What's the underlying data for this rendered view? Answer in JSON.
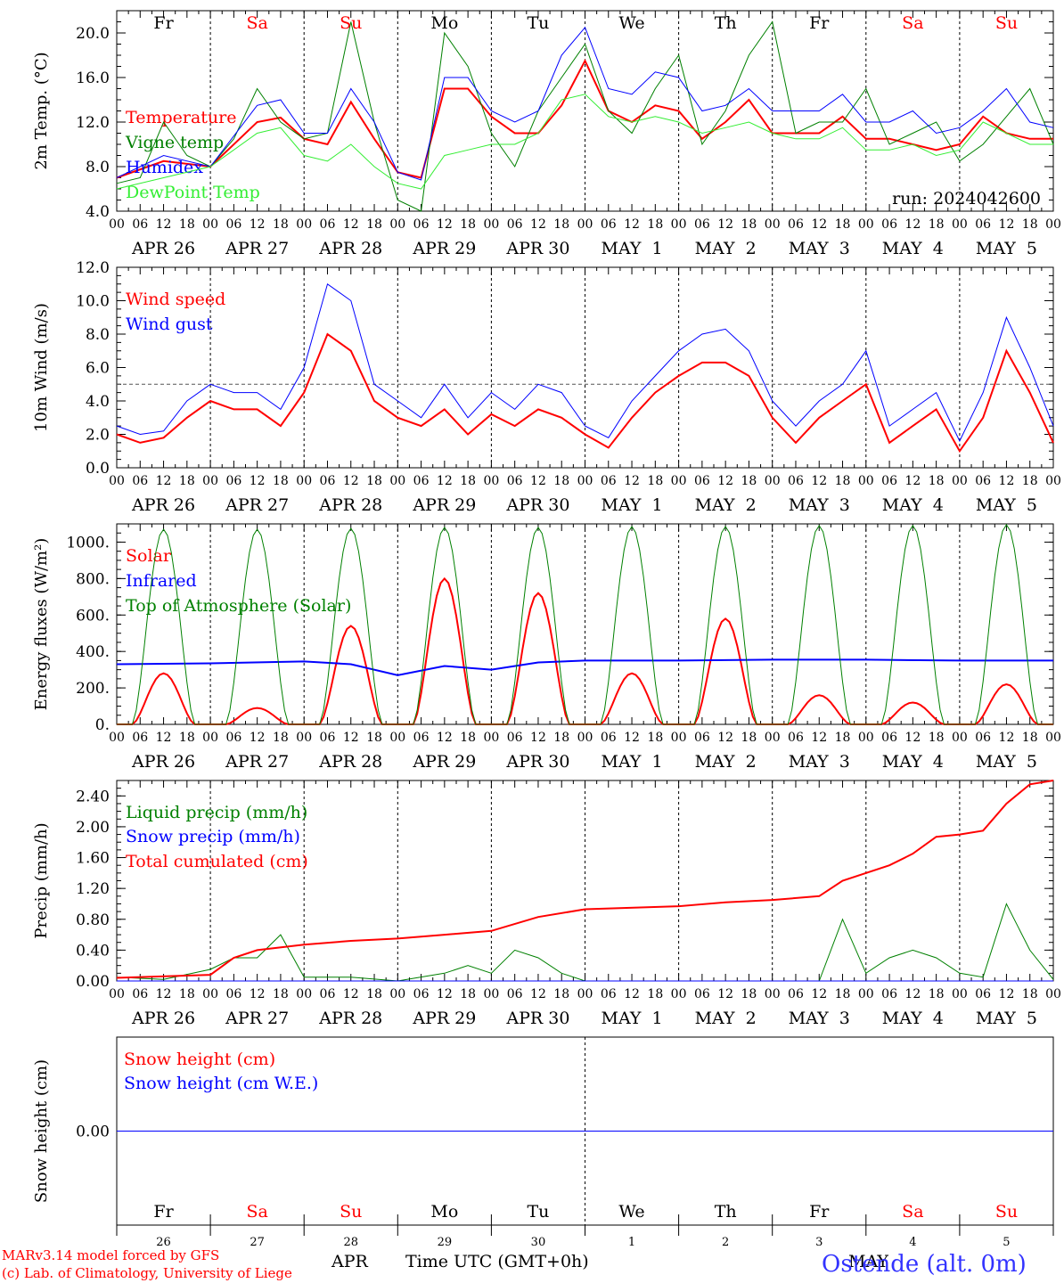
{
  "station": "Ostende (alt. 0m)",
  "credits": [
    "MARv3.14 model forced by GFS",
    "(c) Lab. of Climatology, University of Liege"
  ],
  "x_axis_title": "Time UTC (GMT+0h)",
  "months": [
    "APR",
    "MAY"
  ],
  "run_label": "run: 2024042600",
  "hour_ticks": [
    "00",
    "06",
    "12",
    "18"
  ],
  "date_labels": [
    "APR 26",
    "APR 27",
    "APR 28",
    "APR 29",
    "APR 30",
    "MAY  1",
    "MAY  2",
    "MAY  3",
    "MAY  4",
    "MAY  5"
  ],
  "weekdays": [
    {
      "name": "Fr",
      "color": "#000000"
    },
    {
      "name": "Sa",
      "color": "#ff0000"
    },
    {
      "name": "Su",
      "color": "#ff0000"
    },
    {
      "name": "Mo",
      "color": "#000000"
    },
    {
      "name": "Tu",
      "color": "#000000"
    },
    {
      "name": "We",
      "color": "#000000"
    },
    {
      "name": "Th",
      "color": "#000000"
    },
    {
      "name": "Fr",
      "color": "#000000"
    },
    {
      "name": "Sa",
      "color": "#ff0000"
    },
    {
      "name": "Su",
      "color": "#ff0000"
    }
  ],
  "day_numbers": [
    "26",
    "27",
    "28",
    "29",
    "30",
    "1",
    "2",
    "3",
    "4",
    "5"
  ],
  "colors": {
    "red": "#ff0000",
    "green": "#008000",
    "blue": "#0000ff",
    "lightgreen": "#33ee33",
    "purple": "#800080"
  },
  "chart_data": [
    {
      "type": "line",
      "ylabel": "2m Temp. (°C)",
      "ylim": [
        4,
        22
      ],
      "yticks": [
        "4.0",
        "8.0",
        "12.0",
        "16.0",
        "20.0"
      ],
      "ytick_values": [
        4,
        8,
        12,
        16,
        20
      ],
      "x_unit": "hours since APR 26 00 UTC",
      "x_range": [
        0,
        240
      ],
      "series": [
        {
          "name": "Temperature",
          "color": "#ff0000",
          "width": 2,
          "x": [
            0,
            12,
            24,
            36,
            42,
            48,
            54,
            60,
            66,
            72,
            78,
            84,
            90,
            96,
            102,
            108,
            114,
            120,
            126,
            132,
            138,
            144,
            150,
            156,
            162,
            168,
            174,
            180,
            186,
            192,
            198,
            204,
            210,
            216,
            222,
            228,
            234,
            240
          ],
          "y": [
            7,
            8.5,
            8,
            12,
            12.4,
            10.5,
            10,
            13.8,
            10.5,
            7.5,
            7,
            15,
            15,
            12.5,
            11,
            11,
            13.5,
            17.5,
            13,
            12,
            13.5,
            13,
            10.5,
            12,
            14,
            11,
            11,
            11,
            12.5,
            10.5,
            10.5,
            10,
            9.5,
            10,
            12.5,
            11,
            10.5,
            10.5
          ]
        },
        {
          "name": "Vigne temp",
          "color": "#008000",
          "width": 1,
          "x": [
            0,
            6,
            12,
            18,
            24,
            30,
            36,
            42,
            48,
            54,
            60,
            66,
            72,
            78,
            84,
            90,
            96,
            102,
            108,
            114,
            120,
            126,
            132,
            138,
            144,
            150,
            156,
            162,
            168,
            174,
            180,
            186,
            192,
            198,
            204,
            210,
            216,
            222,
            228,
            234,
            240
          ],
          "y": [
            6.5,
            7,
            12,
            9,
            8,
            10.5,
            15,
            12,
            10.5,
            11,
            21,
            12,
            5,
            4,
            20,
            17,
            11,
            8,
            13,
            16,
            19,
            13,
            11,
            15,
            18,
            10,
            13,
            18,
            21,
            11,
            12,
            12,
            15,
            10,
            11,
            12,
            8.5,
            10,
            12.5,
            15,
            10
          ]
        },
        {
          "name": "Humidex",
          "color": "#0000ff",
          "width": 1,
          "x": [
            0,
            12,
            24,
            36,
            42,
            48,
            54,
            60,
            66,
            72,
            78,
            84,
            90,
            96,
            102,
            108,
            114,
            120,
            126,
            132,
            138,
            144,
            150,
            156,
            162,
            168,
            174,
            180,
            186,
            192,
            198,
            204,
            210,
            216,
            222,
            228,
            234,
            240
          ],
          "y": [
            7,
            9,
            8,
            13.5,
            14,
            11,
            11,
            15,
            12,
            7.5,
            6.8,
            16,
            16,
            13,
            12,
            13,
            18,
            20.5,
            15,
            14.5,
            16.5,
            16,
            13,
            13.5,
            15,
            13,
            13,
            13,
            14.5,
            12,
            12,
            13,
            11,
            11.5,
            13,
            15,
            12,
            11.5
          ]
        },
        {
          "name": "DewPoint Temp",
          "color": "#33ee33",
          "width": 1,
          "x": [
            0,
            12,
            24,
            36,
            42,
            48,
            54,
            60,
            66,
            72,
            78,
            84,
            90,
            96,
            102,
            108,
            114,
            120,
            126,
            132,
            138,
            144,
            150,
            156,
            162,
            168,
            174,
            180,
            186,
            192,
            198,
            204,
            210,
            216,
            222,
            228,
            234,
            240
          ],
          "y": [
            6,
            7,
            8,
            11,
            11.5,
            9,
            8.5,
            10,
            8,
            6.5,
            6,
            9,
            9.5,
            10,
            10,
            11,
            14,
            14.5,
            12.5,
            12,
            12.5,
            12,
            11,
            11.5,
            12,
            11,
            10.5,
            10.5,
            11.5,
            9.5,
            9.5,
            10,
            9,
            9.5,
            12,
            11,
            10,
            10
          ]
        }
      ]
    },
    {
      "type": "line",
      "ylabel": "10m Wind (m/s)",
      "ylim": [
        0,
        12
      ],
      "yticks": [
        "0.0",
        "2.0",
        "4.0",
        "6.0",
        "8.0",
        "10.0",
        "12.0"
      ],
      "ytick_values": [
        0,
        2,
        4,
        6,
        8,
        10,
        12
      ],
      "reference_line": 5,
      "x_unit": "hours since APR 26 00 UTC",
      "x_range": [
        0,
        240
      ],
      "series": [
        {
          "name": "Wind speed",
          "color": "#ff0000",
          "width": 2,
          "x": [
            0,
            6,
            12,
            18,
            24,
            30,
            36,
            42,
            48,
            54,
            60,
            66,
            72,
            78,
            84,
            90,
            96,
            102,
            108,
            114,
            120,
            126,
            132,
            138,
            144,
            150,
            156,
            162,
            168,
            174,
            180,
            186,
            192,
            198,
            204,
            210,
            216,
            222,
            228,
            234,
            240
          ],
          "y": [
            2,
            1.5,
            1.8,
            3,
            4,
            3.5,
            3.5,
            2.5,
            4.5,
            8,
            7,
            4,
            3,
            2.5,
            3.5,
            2,
            3.2,
            2.5,
            3.5,
            3,
            2,
            1.2,
            3,
            4.5,
            5.5,
            6.3,
            6.3,
            5.5,
            3,
            1.5,
            3,
            4,
            5,
            1.5,
            2.5,
            3.5,
            1,
            3,
            7,
            4.5,
            1.5
          ]
        },
        {
          "name": "Wind gust",
          "color": "#0000ff",
          "width": 1,
          "x": [
            0,
            6,
            12,
            18,
            24,
            30,
            36,
            42,
            48,
            54,
            60,
            66,
            72,
            78,
            84,
            90,
            96,
            102,
            108,
            114,
            120,
            126,
            132,
            138,
            144,
            150,
            156,
            162,
            168,
            174,
            180,
            186,
            192,
            198,
            204,
            210,
            216,
            222,
            228,
            234,
            240
          ],
          "y": [
            2.5,
            2,
            2.2,
            4,
            5,
            4.5,
            4.5,
            3.5,
            6,
            11,
            10,
            5,
            4,
            3,
            5,
            3,
            4.5,
            3.5,
            5,
            4.5,
            2.5,
            1.8,
            4,
            5.5,
            7,
            8,
            8.3,
            7,
            4,
            2.5,
            4,
            5,
            7,
            2.5,
            3.5,
            4.5,
            1.6,
            4.5,
            9,
            6,
            2.5
          ]
        }
      ]
    },
    {
      "type": "line",
      "ylabel": "Energy fluxes (W/m²)",
      "ylim": [
        0,
        1100
      ],
      "yticks": [
        "0.",
        "200.",
        "400.",
        "600.",
        "800.",
        "1000."
      ],
      "ytick_values": [
        0,
        200,
        400,
        600,
        800,
        1000
      ],
      "x_unit": "hours since APR 26 00 UTC",
      "x_range": [
        0,
        240
      ],
      "daily_peak_hour": 12,
      "series": [
        {
          "name": "Solar",
          "color": "#ff0000",
          "width": 2,
          "daily_peaks": [
            280,
            90,
            540,
            800,
            720,
            280,
            580,
            160,
            120,
            220
          ]
        },
        {
          "name": "Infrared",
          "color": "#0000ff",
          "width": 2,
          "x": [
            0,
            24,
            48,
            60,
            72,
            84,
            96,
            108,
            120,
            144,
            168,
            192,
            216,
            240
          ],
          "y": [
            330,
            335,
            345,
            330,
            270,
            320,
            300,
            340,
            350,
            350,
            355,
            355,
            350,
            350
          ]
        },
        {
          "name": "Top of Atmosphere (Solar)",
          "color": "#008000",
          "width": 1,
          "daily_peaks": [
            1070,
            1070,
            1075,
            1080,
            1080,
            1085,
            1085,
            1090,
            1090,
            1095
          ]
        }
      ]
    },
    {
      "type": "line",
      "ylabel": "Precip (mm/h)",
      "ylim": [
        0,
        2.6
      ],
      "yticks": [
        "0.00",
        "0.40",
        "0.80",
        "1.20",
        "1.60",
        "2.00",
        "2.40"
      ],
      "ytick_values": [
        0,
        0.4,
        0.8,
        1.2,
        1.6,
        2,
        2.4
      ],
      "x_unit": "hours since APR 26 00 UTC",
      "x_range": [
        0,
        240
      ],
      "series": [
        {
          "name": "Liquid precip (mm/h)",
          "color": "#008000",
          "width": 1,
          "x": [
            0,
            12,
            24,
            30,
            36,
            42,
            48,
            60,
            72,
            84,
            90,
            96,
            102,
            108,
            114,
            120,
            132,
            144,
            168,
            180,
            186,
            192,
            198,
            204,
            210,
            216,
            222,
            228,
            234,
            240
          ],
          "y": [
            0.05,
            0.02,
            0.15,
            0.3,
            0.3,
            0.6,
            0.05,
            0.05,
            0,
            0.1,
            0.2,
            0.1,
            0.4,
            0.3,
            0.1,
            0,
            0,
            0,
            0,
            0,
            0.8,
            0.1,
            0.3,
            0.4,
            0.3,
            0.1,
            0.05,
            1,
            0.4,
            0.02
          ]
        },
        {
          "name": "Snow precip (mm/h)",
          "color": "#0000ff",
          "width": 1,
          "x": [
            0,
            240
          ],
          "y": [
            0,
            0
          ]
        },
        {
          "name": "Total cumulated (cm)",
          "color": "#ff0000",
          "width": 2,
          "x": [
            0,
            24,
            30,
            36,
            48,
            60,
            72,
            84,
            96,
            108,
            120,
            144,
            156,
            168,
            180,
            186,
            198,
            204,
            210,
            216,
            222,
            228,
            234,
            240
          ],
          "y": [
            0.04,
            0.08,
            0.3,
            0.4,
            0.47,
            0.52,
            0.55,
            0.6,
            0.65,
            0.83,
            0.93,
            0.97,
            1.02,
            1.05,
            1.1,
            1.3,
            1.5,
            1.65,
            1.87,
            1.9,
            1.95,
            2.3,
            2.55,
            2.6
          ]
        }
      ]
    },
    {
      "type": "line",
      "ylabel": "Snow height (cm)",
      "ylim": [
        -1,
        1
      ],
      "yticks": [
        "0.00"
      ],
      "ytick_values": [
        0
      ],
      "x_unit": "hours since APR 26 00 UTC",
      "x_range": [
        0,
        240
      ],
      "series": [
        {
          "name": "Snow height (cm)",
          "color": "#ff0000",
          "width": 1,
          "x": [
            0,
            240
          ],
          "y": [
            0,
            0
          ]
        },
        {
          "name": "Snow height (cm W.E.)",
          "color": "#0000ff",
          "width": 1,
          "x": [
            0,
            240
          ],
          "y": [
            0,
            0
          ]
        }
      ]
    }
  ]
}
